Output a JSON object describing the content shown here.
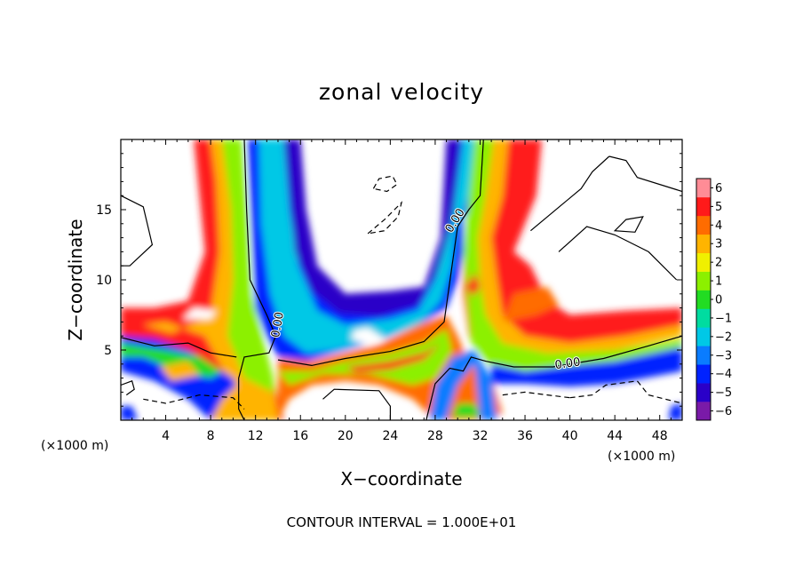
{
  "chart_data": {
    "type": "heatmap",
    "title": "zonal velocity",
    "xlabel": "X−coordinate",
    "ylabel": "Z−coordinate",
    "x_unit": "(×1000 m)",
    "z_unit": "(×1000 m)",
    "xlim": [
      0,
      50
    ],
    "ylim": [
      0,
      20
    ],
    "x_ticks": [
      4,
      8,
      12,
      16,
      20,
      24,
      28,
      32,
      36,
      40,
      44,
      48
    ],
    "x_tick_labels": [
      "4",
      "8",
      "12",
      "16",
      "20",
      "24",
      "28",
      "32",
      "36",
      "40",
      "44",
      "48"
    ],
    "y_ticks": [
      5,
      10,
      15
    ],
    "y_tick_labels": [
      "5",
      "10",
      "15"
    ],
    "colorbar": {
      "min": -6,
      "max": 6,
      "levels": [
        -6,
        -5,
        -4,
        -3,
        -2,
        -1,
        0,
        1,
        2,
        3,
        4,
        5,
        6
      ],
      "labels": [
        "−6",
        "−5",
        "−4",
        "−3",
        "−2",
        "−1",
        "0",
        "1",
        "2",
        "3",
        "4",
        "5",
        "6"
      ],
      "colors": [
        "#7a1aa8",
        "#2a00c8",
        "#0022ff",
        "#0a7cff",
        "#00c8e6",
        "#00dca0",
        "#22dc22",
        "#8cf000",
        "#f0f000",
        "#ffb400",
        "#ff6c00",
        "#ff1a1a",
        "#ff8c96"
      ]
    },
    "contour_labels": [
      {
        "text": "0.00",
        "x": 14,
        "z": 6.8,
        "angle": -80
      },
      {
        "text": "0.00",
        "x": 29.8,
        "z": 14.2,
        "angle": -58
      },
      {
        "text": "0.00",
        "x": 39.8,
        "z": 4.0,
        "angle": -8
      }
    ],
    "contour_interval_label": "CONTOUR INTERVAL = 1.000E+01"
  }
}
